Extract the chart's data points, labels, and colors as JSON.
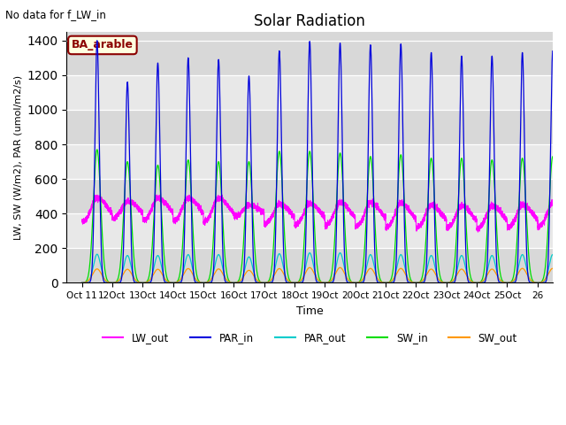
{
  "title": "Solar Radiation",
  "subtitle": "No data for f_LW_in",
  "xlabel": "Time",
  "ylabel": "LW, SW (W/m2), PAR (umol/m2/s)",
  "ylim": [
    0,
    1450
  ],
  "yticks": [
    0,
    200,
    400,
    600,
    800,
    1000,
    1200,
    1400
  ],
  "xtick_labels": [
    "Oct 11",
    "2Oct",
    "3Oct",
    "4Oct",
    "5Oct",
    "6Oct",
    "7Oct",
    "8Oct",
    "9Oct",
    "20Oct",
    "21Oct",
    "22Oct",
    "23Oct",
    "24Oct",
    "25Oct",
    "26"
  ],
  "color_lw_out": "#ff00ff",
  "color_par_in": "#0000dd",
  "color_par_out": "#00cccc",
  "color_sw_in": "#00dd00",
  "color_sw_out": "#ff9900",
  "annotation_text": "BA_arable",
  "legend_entries": [
    "LW_out",
    "PAR_in",
    "PAR_out",
    "SW_in",
    "SW_out"
  ],
  "par_in_peaks": [
    1400,
    1160,
    1270,
    1300,
    1290,
    1195,
    1340,
    1395,
    1385,
    1375,
    1380,
    1330,
    1310,
    1310,
    1330,
    1340
  ],
  "sw_in_peaks": [
    770,
    700,
    680,
    710,
    700,
    700,
    760,
    760,
    750,
    730,
    740,
    720,
    720,
    710,
    720,
    730
  ],
  "sw_out_peaks": [
    80,
    78,
    78,
    82,
    80,
    72,
    82,
    88,
    88,
    83,
    83,
    79,
    79,
    79,
    83,
    83
  ],
  "par_out_peaks": [
    165,
    158,
    158,
    163,
    163,
    150,
    168,
    173,
    173,
    163,
    163,
    158,
    158,
    158,
    163,
    163
  ],
  "lw_day_peaks": [
    490,
    470,
    490,
    490,
    490,
    450,
    455,
    460,
    465,
    465,
    460,
    450,
    445,
    445,
    450,
    460
  ],
  "lw_night_vals": [
    350,
    370,
    355,
    355,
    350,
    380,
    340,
    330,
    328,
    320,
    315,
    315,
    312,
    310,
    315,
    320
  ],
  "band_colors": [
    "#d8d8d8",
    "#e8e8e8"
  ],
  "plot_bg": "#e0e0e0"
}
